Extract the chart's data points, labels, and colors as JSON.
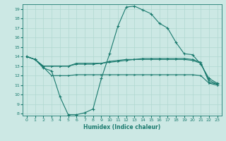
{
  "xlabel": "Humidex (Indice chaleur)",
  "bg_color": "#cce8e4",
  "line_color": "#1a7a6e",
  "grid_color": "#b0d8d0",
  "xlim": [
    -0.5,
    23.5
  ],
  "ylim": [
    7.8,
    19.5
  ],
  "xticks": [
    0,
    1,
    2,
    3,
    4,
    5,
    6,
    7,
    8,
    9,
    10,
    11,
    12,
    13,
    14,
    15,
    16,
    17,
    18,
    19,
    20,
    21,
    22,
    23
  ],
  "yticks": [
    8,
    9,
    10,
    11,
    12,
    13,
    14,
    15,
    16,
    17,
    18,
    19
  ],
  "line1_x": [
    0,
    1,
    2,
    3,
    4,
    5,
    6,
    7,
    8,
    9,
    10,
    11,
    12,
    13,
    14,
    15,
    16,
    17,
    18,
    19,
    20,
    21,
    22,
    23
  ],
  "line1_y": [
    14.0,
    13.7,
    12.8,
    12.5,
    9.8,
    7.9,
    7.9,
    8.1,
    8.5,
    11.7,
    14.3,
    17.2,
    19.2,
    19.3,
    18.9,
    18.5,
    17.5,
    17.0,
    15.5,
    14.3,
    14.2,
    13.2,
    11.7,
    11.2
  ],
  "line2_x": [
    0,
    1,
    2,
    3,
    4,
    5,
    6,
    7,
    8,
    9,
    10,
    11,
    12,
    13,
    14,
    15,
    16,
    17,
    18,
    19,
    20,
    21,
    22,
    23
  ],
  "line2_y": [
    14.0,
    13.7,
    13.0,
    13.0,
    13.0,
    13.0,
    13.2,
    13.2,
    13.2,
    13.3,
    13.4,
    13.5,
    13.6,
    13.7,
    13.8,
    13.8,
    13.8,
    13.8,
    13.8,
    13.8,
    13.7,
    13.4,
    11.3,
    11.1
  ],
  "line3_x": [
    0,
    1,
    2,
    3,
    4,
    5,
    6,
    7,
    8,
    9,
    10,
    11,
    12,
    13,
    14,
    15,
    16,
    17,
    18,
    19,
    20,
    21,
    22,
    23
  ],
  "line3_y": [
    14.0,
    13.7,
    12.9,
    12.0,
    12.0,
    12.0,
    12.1,
    12.1,
    12.1,
    12.1,
    12.1,
    12.1,
    12.1,
    12.1,
    12.1,
    12.1,
    12.1,
    12.1,
    12.1,
    12.1,
    12.1,
    12.0,
    11.2,
    11.0
  ],
  "line4_x": [
    0,
    1,
    2,
    3,
    4,
    5,
    6,
    7,
    8,
    9,
    10,
    11,
    12,
    13,
    14,
    15,
    16,
    17,
    18,
    19,
    20,
    21,
    22,
    23
  ],
  "line4_y": [
    14.0,
    13.7,
    13.0,
    13.0,
    13.0,
    13.0,
    13.3,
    13.3,
    13.3,
    13.3,
    13.5,
    13.6,
    13.7,
    13.7,
    13.7,
    13.7,
    13.7,
    13.7,
    13.7,
    13.7,
    13.6,
    13.3,
    11.5,
    11.1
  ],
  "marker1": "+",
  "marker2": "4",
  "lw": 0.8,
  "ms1": 3.0,
  "ms2": 2.5
}
